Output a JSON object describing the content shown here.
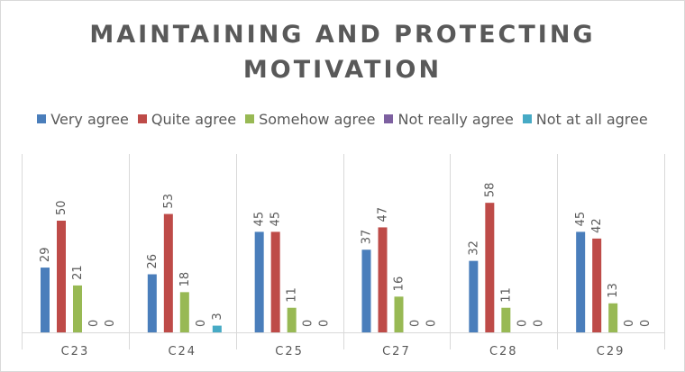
{
  "chart_data": {
    "type": "bar",
    "title_lines": [
      "MAINTAINING  AND PROTECTING",
      "MOTIVATION"
    ],
    "categories": [
      "C23",
      "C24",
      "C25",
      "C27",
      "C28",
      "C29"
    ],
    "series": [
      {
        "name": "Very agree",
        "color": "#4a7ebb",
        "values": [
          29,
          26,
          45,
          37,
          32,
          45
        ]
      },
      {
        "name": "Quite agree",
        "color": "#be4b48",
        "values": [
          50,
          53,
          45,
          47,
          58,
          42
        ]
      },
      {
        "name": "Somehow agree",
        "color": "#98b954",
        "values": [
          21,
          18,
          11,
          16,
          11,
          13
        ]
      },
      {
        "name": "Not really agree",
        "color": "#7d60a0",
        "values": [
          0,
          0,
          0,
          0,
          0,
          0
        ]
      },
      {
        "name": "Not at all agree",
        "color": "#46aac5",
        "values": [
          0,
          3,
          0,
          0,
          0,
          0
        ]
      }
    ],
    "ylim": [
      0,
      70
    ],
    "legend_position": "top",
    "grid": false
  }
}
